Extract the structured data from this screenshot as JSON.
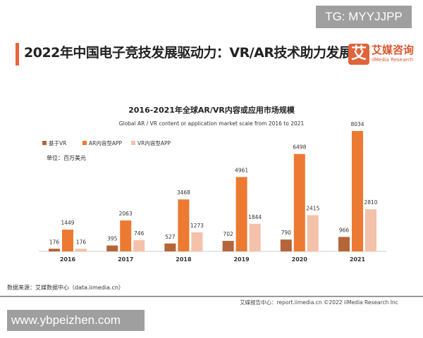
{
  "badge_top": "TG: MYYJJPP",
  "header": {
    "title": "2022年中国电子竞技发展驱动力：VR/AR技术助力发展",
    "logo_glyph": "艾",
    "logo_cn": "艾媒咨询",
    "logo_en": "iiMedia Research"
  },
  "source": "数据来源：艾媒数据中心（data.iimedia.cn）",
  "footer": "艾媒报告中心：report.iimedia.cn   ©2022  iiMedia Research  Inc",
  "watermark": "www.ybpeizhen.com",
  "chart_data": {
    "type": "bar",
    "title": "2016-2021年全球AR/VR内容或应用市场规模",
    "subtitle": "Global AR / VR content or application market scale from 2016 to 2021",
    "unit": "单位：百万美元",
    "categories": [
      "2016",
      "2017",
      "2018",
      "2019",
      "2020",
      "2021"
    ],
    "series": [
      {
        "name": "基于VR",
        "color": "#b5653a",
        "values": [
          176,
          395,
          527,
          702,
          790,
          966
        ]
      },
      {
        "name": "AR内容型APP",
        "color": "#ec7a32",
        "values": [
          1449,
          2063,
          3468,
          4961,
          6498,
          8034
        ]
      },
      {
        "name": "VR内容型APP",
        "color": "#f4c1aa",
        "values": [
          176,
          746,
          1273,
          1844,
          2415,
          2810
        ]
      }
    ],
    "legend": "top-left",
    "grid": false,
    "ylim": [
      0,
      8034
    ]
  }
}
